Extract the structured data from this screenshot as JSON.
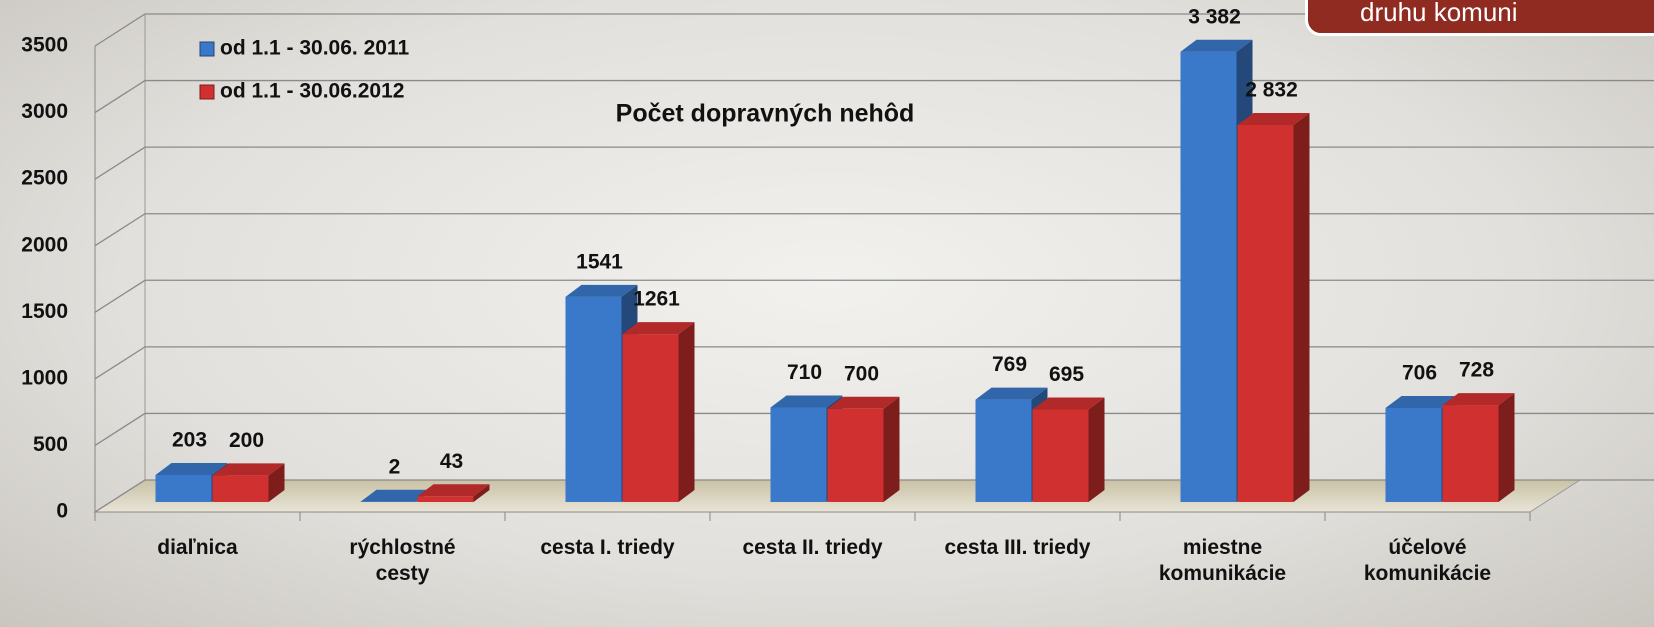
{
  "chart_data": {
    "type": "bar3d",
    "title": "Počet dopravných nehôd",
    "annotation": "druhu komuni",
    "categories": [
      "diaľnica",
      "rýchlostné cesty",
      "cesta I. triedy",
      "cesta II. triedy",
      "cesta III. triedy",
      "miestne komunikácie",
      "účelové komunikácie"
    ],
    "series": [
      {
        "name": "od 1.1 - 30.06. 2011",
        "color": "#3a78c9",
        "values": [
          203,
          2,
          1541,
          710,
          769,
          3382,
          706
        ],
        "value_labels": [
          "203",
          "2",
          "1541",
          "710",
          "769",
          "3 382",
          "706"
        ]
      },
      {
        "name": "od 1.1 - 30.06.2012",
        "color": "#d0302f",
        "values": [
          200,
          43,
          1261,
          700,
          695,
          2832,
          728
        ],
        "value_labels": [
          "200",
          "43",
          "1261",
          "700",
          "695",
          "2 832",
          "728"
        ]
      }
    ],
    "ylim": [
      0,
      3500
    ],
    "yticks": [
      0,
      500,
      1000,
      1500,
      2000,
      2500,
      3000,
      3500
    ],
    "grid": true
  }
}
